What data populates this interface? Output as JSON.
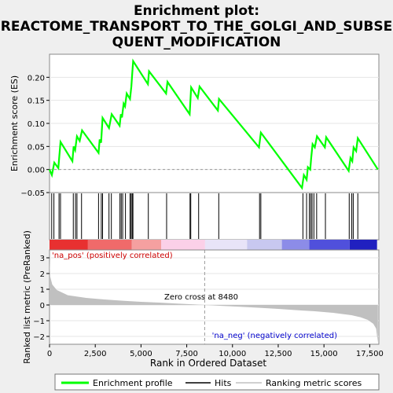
{
  "chart_data": {
    "type": "line",
    "title_line1": "Enrichment plot:",
    "title_line2": "REACTOME_TRANSPORT_TO_THE_GOLGI_AND_SUBSE",
    "title_line3": "QUENT_MODIFICATION",
    "top_panel": {
      "ylabel": "Enrichment score (ES)",
      "ylim": [
        -0.05,
        0.25
      ],
      "yticks": [
        -0.05,
        0.0,
        0.05,
        0.1,
        0.15,
        0.2
      ],
      "ytick_labels": [
        "−0.05",
        "0.00",
        "0.05",
        "0.10",
        "0.15",
        "0.20"
      ],
      "series_name": "Enrichment profile",
      "color": "#00ff00",
      "points": [
        [
          0,
          0
        ],
        [
          130,
          -0.012
        ],
        [
          260,
          0.015
        ],
        [
          480,
          0.003
        ],
        [
          600,
          0.06
        ],
        [
          1250,
          0.018
        ],
        [
          1320,
          0.05
        ],
        [
          1400,
          0.042
        ],
        [
          1500,
          0.072
        ],
        [
          1650,
          0.062
        ],
        [
          1780,
          0.085
        ],
        [
          2680,
          0.036
        ],
        [
          2740,
          0.065
        ],
        [
          2820,
          0.058
        ],
        [
          2900,
          0.112
        ],
        [
          3250,
          0.09
        ],
        [
          3400,
          0.12
        ],
        [
          3830,
          0.095
        ],
        [
          3900,
          0.12
        ],
        [
          3960,
          0.113
        ],
        [
          4050,
          0.143
        ],
        [
          4130,
          0.137
        ],
        [
          4220,
          0.165
        ],
        [
          4400,
          0.153
        ],
        [
          4470,
          0.18
        ],
        [
          4520,
          0.207
        ],
        [
          4570,
          0.235
        ],
        [
          5380,
          0.185
        ],
        [
          5440,
          0.213
        ],
        [
          6370,
          0.165
        ],
        [
          6450,
          0.19
        ],
        [
          7660,
          0.12
        ],
        [
          7740,
          0.178
        ],
        [
          8100,
          0.155
        ],
        [
          8200,
          0.18
        ],
        [
          9200,
          0.128
        ],
        [
          9260,
          0.153
        ],
        [
          11450,
          0.048
        ],
        [
          11550,
          0.08
        ],
        [
          13800,
          -0.04
        ],
        [
          13900,
          -0.012
        ],
        [
          14050,
          -0.022
        ],
        [
          14120,
          0.005
        ],
        [
          14250,
          0.0
        ],
        [
          14300,
          0.025
        ],
        [
          14380,
          0.055
        ],
        [
          14500,
          0.048
        ],
        [
          14620,
          0.072
        ],
        [
          15050,
          0.048
        ],
        [
          15120,
          0.07
        ],
        [
          16350,
          -0.003
        ],
        [
          16450,
          0.025
        ],
        [
          16550,
          0.018
        ],
        [
          16620,
          0.048
        ],
        [
          16760,
          0.04
        ],
        [
          16850,
          0.068
        ],
        [
          17950,
          0.0
        ]
      ]
    },
    "hits_panel": {
      "series_name": "Hits",
      "hits": [
        120,
        240,
        520,
        600,
        1300,
        1420,
        1500,
        1750,
        2680,
        2830,
        2900,
        3250,
        3380,
        3850,
        3920,
        4000,
        4150,
        4400,
        4460,
        4520,
        4560,
        5400,
        6400,
        7680,
        7720,
        8150,
        9250,
        11480,
        11550,
        13850,
        14050,
        14200,
        14280,
        14350,
        14450,
        14600,
        15080,
        16380,
        16520,
        16600,
        16850
      ]
    },
    "bottom_panel": {
      "ylabel": "Ranked list metric (PreRanked)",
      "ylim": [
        -2.5,
        3.5
      ],
      "yticks": [
        -2,
        -1,
        0,
        1,
        2,
        3
      ],
      "ytick_labels": [
        "−2",
        "−1",
        "0",
        "1",
        "2",
        "3"
      ],
      "xlabel": "Rank in Ordered Dataset",
      "xlim": [
        0,
        18000
      ],
      "xticks": [
        0,
        2500,
        5000,
        7500,
        10000,
        12500,
        15000,
        17500
      ],
      "xtick_labels": [
        "0",
        "2,500",
        "5,000",
        "7,500",
        "10,000",
        "12,500",
        "15,000",
        "17,500"
      ],
      "series_name": "Ranking metric scores",
      "metric_curve": [
        [
          0,
          3.0
        ],
        [
          40,
          1.8
        ],
        [
          150,
          1.3
        ],
        [
          400,
          0.95
        ],
        [
          1000,
          0.62
        ],
        [
          2000,
          0.45
        ],
        [
          3000,
          0.35
        ],
        [
          4000,
          0.27
        ],
        [
          5000,
          0.2
        ],
        [
          6000,
          0.15
        ],
        [
          7000,
          0.09
        ],
        [
          8000,
          0.03
        ],
        [
          8480,
          0.0
        ],
        [
          9500,
          -0.06
        ],
        [
          10500,
          -0.12
        ],
        [
          11500,
          -0.18
        ],
        [
          12500,
          -0.25
        ],
        [
          13500,
          -0.33
        ],
        [
          14500,
          -0.4
        ],
        [
          15500,
          -0.5
        ],
        [
          16500,
          -0.65
        ],
        [
          17000,
          -0.78
        ],
        [
          17400,
          -0.95
        ],
        [
          17700,
          -1.2
        ],
        [
          17850,
          -1.5
        ],
        [
          17950,
          -2.4
        ]
      ],
      "pos_label": "'na_pos' (positively correlated)",
      "neg_label": "'na_neg' (negatively correlated)",
      "zero_cross_label": "Zero cross at 8480",
      "zero_cross": 8480
    },
    "colorbar_segments": [
      {
        "from": 0,
        "to": 2100,
        "color": "#e83030"
      },
      {
        "from": 2100,
        "to": 4500,
        "color": "#f06a6a"
      },
      {
        "from": 4500,
        "to": 6100,
        "color": "#f5a0a0"
      },
      {
        "from": 6100,
        "to": 8500,
        "color": "#fbd0e8"
      },
      {
        "from": 8500,
        "to": 10800,
        "color": "#e8e4f8"
      },
      {
        "from": 10800,
        "to": 12700,
        "color": "#c8c8f0"
      },
      {
        "from": 12700,
        "to": 14200,
        "color": "#8c8ce8"
      },
      {
        "from": 14200,
        "to": 16400,
        "color": "#5050dc"
      },
      {
        "from": 16400,
        "to": 17900,
        "color": "#2020c0"
      }
    ],
    "legend": [
      {
        "label": "Enrichment profile",
        "color": "#00ff00"
      },
      {
        "label": "Hits",
        "color": "#000000"
      },
      {
        "label": "Ranking metric scores",
        "color": "#c0c0c0"
      }
    ]
  }
}
